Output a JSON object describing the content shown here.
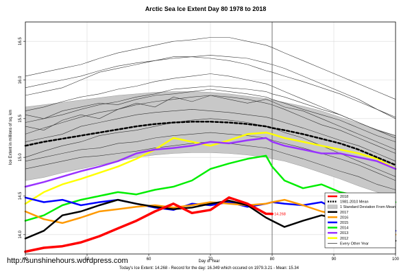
{
  "source_url": "http://sunshinehours.wordpress.com",
  "chart_data": {
    "type": "line",
    "title": "Arctic Sea Ice Extent Day 80 1978 to 2018",
    "xlabel": "Day of Year",
    "ylabel": "Ice Extent in millions of sq. km",
    "caption": "Today's Ice Extent: 14.268  - Record for the day: 16.349 which occured on 1979.3.21  - Mean: 15.34",
    "xlim": [
      40,
      100
    ],
    "ylim": [
      13.75,
      16.75
    ],
    "x_ticks": [
      40,
      50,
      60,
      70,
      80,
      90,
      100
    ],
    "y_ticks": [
      14.0,
      14.5,
      15.0,
      15.5,
      16.0,
      16.5
    ],
    "x_tick_labels": [
      "40",
      "50",
      "60",
      "70",
      "80",
      "90",
      "100"
    ],
    "y_tick_labels": [
      "14.0",
      "14.5",
      "15.0",
      "15.5",
      "16.0",
      "16.5"
    ],
    "grid": true,
    "legend_position": "bottom-right",
    "marker_day": 80,
    "point_annotation": {
      "x": 80,
      "y": 14.268,
      "label": "14.268"
    },
    "x": [
      40,
      43,
      46,
      49,
      52,
      55,
      58,
      61,
      64,
      67,
      70,
      73,
      76,
      79,
      80,
      82,
      85,
      88,
      91,
      94,
      97,
      100
    ],
    "std_band": {
      "name": "1 Standard Deviation From Mean",
      "color": "#c8c8c8",
      "upper": [
        15.65,
        15.68,
        15.71,
        15.74,
        15.77,
        15.8,
        15.82,
        15.84,
        15.85,
        15.85,
        15.84,
        15.82,
        15.79,
        15.76,
        15.74,
        15.71,
        15.66,
        15.6,
        15.52,
        15.44,
        15.36,
        15.28
      ],
      "lower": [
        14.7,
        14.74,
        14.8,
        14.85,
        14.9,
        14.95,
        15.0,
        15.03,
        15.05,
        15.06,
        15.06,
        15.05,
        15.03,
        15.0,
        14.98,
        14.95,
        14.88,
        14.8,
        14.72,
        14.63,
        14.55,
        14.48
      ]
    },
    "series": [
      {
        "name": "2018",
        "color": "#ff0000",
        "width": 3.5,
        "values": [
          13.78,
          13.83,
          13.85,
          13.9,
          13.98,
          14.08,
          14.18,
          14.3,
          14.4,
          14.28,
          14.32,
          14.48,
          14.4,
          14.27,
          14.268,
          null,
          null,
          null,
          null,
          null,
          null,
          null
        ]
      },
      {
        "name": "1981-2010 Mean",
        "color": "#000000",
        "width": 2.5,
        "dash": "4,3",
        "values": [
          15.15,
          15.2,
          15.24,
          15.28,
          15.32,
          15.36,
          15.4,
          15.43,
          15.45,
          15.46,
          15.46,
          15.45,
          15.43,
          15.4,
          15.38,
          15.35,
          15.3,
          15.24,
          15.18,
          15.1,
          15.0,
          14.9
        ]
      },
      {
        "name": "2017",
        "color": "#000000",
        "width": 2.5,
        "values": [
          13.95,
          14.05,
          14.25,
          14.3,
          14.38,
          14.45,
          14.4,
          14.36,
          14.33,
          14.35,
          14.4,
          14.44,
          14.38,
          14.22,
          14.18,
          14.1,
          14.18,
          14.25,
          14.2,
          14.12,
          14.0,
          13.92
        ]
      },
      {
        "name": "2016",
        "color": "#ff9900",
        "width": 2.5,
        "values": [
          14.3,
          14.2,
          14.15,
          14.22,
          14.3,
          14.33,
          14.36,
          14.38,
          14.35,
          14.38,
          14.42,
          14.4,
          14.38,
          14.4,
          14.42,
          14.45,
          14.38,
          14.3,
          14.25,
          14.15,
          14.05,
          14.0
        ]
      },
      {
        "name": "2015",
        "color": "#0000ff",
        "width": 2.5,
        "values": [
          14.48,
          14.42,
          14.45,
          14.38,
          14.42,
          14.45,
          14.4,
          14.35,
          14.32,
          14.4,
          14.38,
          14.42,
          14.36,
          14.4,
          14.42,
          14.4,
          14.38,
          14.42,
          14.3,
          14.18,
          14.08,
          14.05
        ]
      },
      {
        "name": "2014",
        "color": "#00ee00",
        "width": 2.5,
        "values": [
          14.18,
          14.25,
          14.38,
          14.45,
          14.5,
          14.55,
          14.52,
          14.58,
          14.62,
          14.7,
          14.85,
          14.92,
          14.98,
          15.02,
          14.88,
          14.7,
          14.6,
          14.65,
          14.55,
          14.5,
          14.45,
          14.42
        ]
      },
      {
        "name": "2013",
        "color": "#9933ff",
        "width": 2.5,
        "values": [
          14.62,
          14.68,
          14.75,
          14.82,
          14.88,
          14.95,
          15.05,
          15.1,
          15.12,
          15.15,
          15.2,
          15.18,
          15.22,
          15.25,
          15.2,
          15.15,
          15.1,
          15.05,
          15.05,
          15.0,
          14.95,
          14.85
        ]
      },
      {
        "name": "2012",
        "color": "#ffff00",
        "width": 2.5,
        "values": [
          14.4,
          14.55,
          14.65,
          14.72,
          14.8,
          14.88,
          14.98,
          15.1,
          15.25,
          15.2,
          15.15,
          15.22,
          15.3,
          15.32,
          15.3,
          15.25,
          15.2,
          15.15,
          15.1,
          15.05,
          14.98,
          14.85
        ]
      }
    ],
    "other_years": {
      "name": "Every Other Year",
      "color": "#333333",
      "lines": [
        [
          15.8,
          15.85,
          15.9,
          16.0,
          16.1,
          16.15,
          16.2,
          16.25,
          16.3,
          16.3,
          16.32,
          16.3,
          16.28,
          16.22,
          16.2,
          16.15,
          16.05,
          15.95,
          15.85,
          15.75,
          15.62,
          15.5
        ],
        [
          16.05,
          16.1,
          16.15,
          16.2,
          16.28,
          16.35,
          16.4,
          16.45,
          16.5,
          16.52,
          16.55,
          16.55,
          16.5,
          16.45,
          16.42,
          16.35,
          16.25,
          16.15,
          16.05,
          15.95,
          15.85,
          15.75
        ],
        [
          15.6,
          15.65,
          15.72,
          15.78,
          15.82,
          15.88,
          15.92,
          15.98,
          16.02,
          16.05,
          16.08,
          16.05,
          16.0,
          15.95,
          15.92,
          15.85,
          15.75,
          15.65,
          15.55,
          15.45,
          15.35,
          15.25
        ],
        [
          15.3,
          15.38,
          15.45,
          15.52,
          15.58,
          15.62,
          15.68,
          15.72,
          15.75,
          15.78,
          15.8,
          15.78,
          15.75,
          15.7,
          15.68,
          15.62,
          15.52,
          15.42,
          15.35,
          15.25,
          15.15,
          15.05
        ],
        [
          15.4,
          15.35,
          15.48,
          15.55,
          15.5,
          15.62,
          15.7,
          15.65,
          15.78,
          15.72,
          15.8,
          15.75,
          15.7,
          15.75,
          15.72,
          15.65,
          15.6,
          15.5,
          15.4,
          15.3,
          15.2,
          15.1
        ],
        [
          15.2,
          15.25,
          15.3,
          15.4,
          15.45,
          15.5,
          15.55,
          15.58,
          15.6,
          15.62,
          15.6,
          15.58,
          15.55,
          15.52,
          15.5,
          15.45,
          15.38,
          15.3,
          15.22,
          15.15,
          15.05,
          14.95
        ],
        [
          15.0,
          15.08,
          15.15,
          15.2,
          15.28,
          15.32,
          15.35,
          15.4,
          15.45,
          15.48,
          15.5,
          15.48,
          15.45,
          15.4,
          15.38,
          15.32,
          15.25,
          15.15,
          15.05,
          14.95,
          14.85,
          14.75
        ],
        [
          15.55,
          15.5,
          15.6,
          15.65,
          15.7,
          15.68,
          15.75,
          15.8,
          15.82,
          15.85,
          15.88,
          15.85,
          15.82,
          15.78,
          15.75,
          15.7,
          15.62,
          15.55,
          15.48,
          15.38,
          15.28,
          15.2
        ],
        [
          14.95,
          15.0,
          15.05,
          15.1,
          15.12,
          15.18,
          15.2,
          15.25,
          15.28,
          15.3,
          15.32,
          15.3,
          15.28,
          15.25,
          15.22,
          15.18,
          15.12,
          15.05,
          14.98,
          14.9,
          14.8,
          14.7
        ],
        [
          14.85,
          14.9,
          14.95,
          15.0,
          15.02,
          15.05,
          15.08,
          15.12,
          15.15,
          15.18,
          15.2,
          15.18,
          15.15,
          15.12,
          15.1,
          15.05,
          14.98,
          14.9,
          14.82,
          14.75,
          14.65,
          14.58
        ],
        [
          15.9,
          15.95,
          16.0,
          16.05,
          16.12,
          16.18,
          16.22,
          16.25,
          16.28,
          16.3,
          16.28,
          16.25,
          16.2,
          16.12,
          16.1,
          16.05,
          15.98,
          15.9,
          15.82,
          15.72,
          15.62,
          15.52
        ],
        [
          15.45,
          15.5,
          15.55,
          15.62,
          15.68,
          15.72,
          15.78,
          15.82,
          15.88,
          15.9,
          15.92,
          15.9,
          15.88,
          15.85,
          15.82,
          15.78,
          15.7,
          15.62,
          15.55,
          15.45,
          15.35,
          15.28
        ]
      ]
    },
    "legend_entries": [
      "2018",
      "1981-2010 Mean",
      "1 Standard Deviation From Mean",
      "2017",
      "2016",
      "2015",
      "2014",
      "2013",
      "2012",
      "Every Other Year"
    ]
  }
}
